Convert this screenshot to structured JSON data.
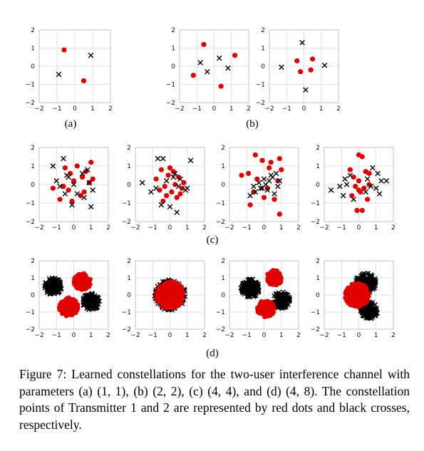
{
  "figure": {
    "colors": {
      "red": "#e00000",
      "black": "#000000",
      "grid": "#d9d9d9",
      "axis": "#bbbbbb"
    },
    "series_names": [
      "Transmitter 1",
      "Transmitter 2"
    ],
    "row_labels": [
      "(a)",
      "(b)",
      "(c)",
      "(d)"
    ]
  },
  "caption": {
    "text": "Figure 7: Learned constellations for the two-user interference channel with parameters (a) (1, 1), (b) (2, 2), (c) (4, 4), and (d) (4, 8). The constellation points of Transmitter 1 and 2 are represented by red dots and black crosses, respectively."
  },
  "chart_data": [
    {
      "type": "scatter",
      "panel": "a",
      "xlim": [
        -2,
        2
      ],
      "ylim": [
        -2,
        2
      ],
      "xticks": [
        -2,
        -1,
        0,
        1,
        2
      ],
      "yticks": [
        -2,
        -1,
        0,
        1,
        2
      ],
      "grid": true,
      "series": [
        {
          "marker": "dot",
          "color": "red",
          "x": [
            -0.6,
            0.5
          ],
          "y": [
            0.9,
            -0.8
          ]
        },
        {
          "marker": "cross",
          "color": "black",
          "x": [
            -0.9,
            0.9
          ],
          "y": [
            -0.45,
            0.6
          ]
        }
      ]
    },
    {
      "type": "scatter",
      "panel": "b1",
      "xlim": [
        -2,
        2
      ],
      "ylim": [
        -2,
        2
      ],
      "xticks": [
        -2,
        -1,
        0,
        1,
        2
      ],
      "yticks": [
        -2,
        -1,
        0,
        1,
        2
      ],
      "grid": true,
      "series": [
        {
          "marker": "dot",
          "color": "red",
          "x": [
            -0.6,
            1.2,
            -1.2,
            0.4
          ],
          "y": [
            1.2,
            0.6,
            -0.5,
            -1.1
          ]
        },
        {
          "marker": "cross",
          "color": "black",
          "x": [
            -0.8,
            0.3,
            -0.4,
            0.8
          ],
          "y": [
            0.2,
            0.45,
            -0.3,
            -0.1
          ]
        }
      ]
    },
    {
      "type": "scatter",
      "panel": "b2",
      "xlim": [
        -2,
        2
      ],
      "ylim": [
        -2,
        2
      ],
      "xticks": [
        -2,
        -1,
        0,
        1,
        2
      ],
      "yticks": [
        -2,
        -1,
        0,
        1,
        2
      ],
      "grid": true,
      "series": [
        {
          "marker": "dot",
          "color": "red",
          "x": [
            -0.4,
            0.5,
            -0.2,
            0.4
          ],
          "y": [
            0.3,
            0.4,
            -0.3,
            -0.2
          ]
        },
        {
          "marker": "cross",
          "color": "black",
          "x": [
            -0.1,
            1.2,
            -1.3,
            0.1
          ],
          "y": [
            1.3,
            0.05,
            -0.05,
            -1.3
          ]
        }
      ]
    },
    {
      "type": "scatter",
      "panel": "c1",
      "xlim": [
        -2,
        2
      ],
      "ylim": [
        -2,
        2
      ],
      "xticks": [
        -2,
        -1,
        0,
        1,
        2
      ],
      "yticks": [
        -2,
        -1,
        0,
        1,
        2
      ],
      "grid": true,
      "series": [
        {
          "marker": "dot",
          "color": "red",
          "x": [
            -0.5,
            0.2,
            1.0,
            -0.2,
            0.7,
            -1.2,
            1.1,
            -0.8,
            0.4,
            -0.3,
            0.0,
            0.9,
            -0.6,
            0.5,
            -0.1,
            0.6
          ],
          "y": [
            0.9,
            1.0,
            1.2,
            0.6,
            0.7,
            -0.2,
            0.3,
            -0.8,
            -0.6,
            -0.3,
            0.2,
            0.1,
            -0.1,
            0.4,
            -0.9,
            -0.4
          ]
        },
        {
          "marker": "cross",
          "color": "black",
          "x": [
            -1.2,
            -0.6,
            -0.4,
            0.8,
            -1.0,
            -0.8,
            1.0,
            0.2,
            -0.3,
            0.5,
            -0.1,
            0.9,
            1.1,
            -0.5,
            0.0,
            0.6
          ],
          "y": [
            1.0,
            1.4,
            0.5,
            0.8,
            0.2,
            -0.1,
            -1.2,
            -0.5,
            0.4,
            0.6,
            -1.1,
            0.1,
            -0.3,
            -0.5,
            0.0,
            -0.7
          ]
        }
      ]
    },
    {
      "type": "scatter",
      "panel": "c2",
      "xlim": [
        -2,
        2
      ],
      "ylim": [
        -2,
        2
      ],
      "xticks": [
        -2,
        -1,
        0,
        1,
        2
      ],
      "yticks": [
        -2,
        -1,
        0,
        1,
        2
      ],
      "grid": true,
      "series": [
        {
          "marker": "dot",
          "color": "red",
          "x": [
            -0.5,
            0.2,
            -0.8,
            0.5,
            -0.3,
            0.1,
            0.8,
            -0.6,
            0.4,
            -0.1,
            0.6,
            -0.4,
            0.0,
            0.3,
            -0.2,
            0.7
          ],
          "y": [
            0.8,
            0.7,
            0.3,
            0.4,
            -0.1,
            -0.4,
            0.1,
            -0.3,
            -0.7,
            0.5,
            -0.5,
            -0.9,
            0.9,
            0.0,
            -0.6,
            -0.2
          ]
        },
        {
          "marker": "cross",
          "color": "black",
          "x": [
            -0.7,
            -0.4,
            1.2,
            -1.6,
            0.9,
            -1.1,
            -0.2,
            0.3,
            0.6,
            1.0,
            -0.8,
            0.0,
            0.4,
            -0.5,
            0.2,
            0.5
          ],
          "y": [
            1.4,
            1.4,
            1.3,
            0.1,
            -0.3,
            -0.4,
            0.2,
            0.6,
            0.3,
            -0.2,
            -0.2,
            -1.2,
            -1.5,
            -1.1,
            0.4,
            -0.1
          ]
        }
      ]
    },
    {
      "type": "scatter",
      "panel": "c3",
      "xlim": [
        -2,
        2
      ],
      "ylim": [
        -2,
        2
      ],
      "xticks": [
        -2,
        -1,
        0,
        1,
        2
      ],
      "yticks": [
        -2,
        -1,
        0,
        1,
        2
      ],
      "grid": true,
      "series": [
        {
          "marker": "dot",
          "color": "red",
          "x": [
            -0.5,
            -0.1,
            0.4,
            0.9,
            1.0,
            -1.3,
            -0.9,
            -0.4,
            0.3,
            0.8,
            -0.8,
            0.0,
            0.6,
            -0.6,
            0.2,
            0.9
          ],
          "y": [
            1.6,
            1.3,
            1.2,
            1.4,
            0.8,
            0.5,
            0.6,
            0.3,
            0.9,
            0.2,
            -1.1,
            -0.7,
            -0.8,
            -0.4,
            -0.2,
            -1.6
          ]
        },
        {
          "marker": "cross",
          "color": "black",
          "x": [
            -0.8,
            -0.5,
            -0.2,
            0.1,
            0.3,
            0.5,
            0.7,
            0.9,
            -0.6,
            -0.3,
            0.0,
            0.2,
            0.4,
            0.6,
            -0.1,
            0.8
          ],
          "y": [
            -0.6,
            -0.4,
            -0.2,
            0.0,
            0.2,
            0.4,
            0.6,
            0.2,
            -0.1,
            0.1,
            0.3,
            -0.3,
            0.5,
            -0.5,
            -0.2,
            -0.1
          ]
        }
      ]
    },
    {
      "type": "scatter",
      "panel": "c4",
      "xlim": [
        -2,
        2
      ],
      "ylim": [
        -2,
        2
      ],
      "xticks": [
        -2,
        -1,
        0,
        1,
        2
      ],
      "yticks": [
        -2,
        -1,
        0,
        1,
        2
      ],
      "grid": true,
      "series": [
        {
          "marker": "dot",
          "color": "red",
          "x": [
            0.0,
            0.2,
            -0.5,
            0.4,
            -0.3,
            0.6,
            0.0,
            -0.2,
            0.3,
            -0.4,
            0.1,
            0.5,
            -0.1,
            0.2,
            0.0,
            0.6
          ],
          "y": [
            1.6,
            1.5,
            0.8,
            0.7,
            0.4,
            0.6,
            0.2,
            -0.1,
            -0.2,
            -0.6,
            -0.4,
            -0.8,
            -1.4,
            -1.4,
            -0.3,
            0.0
          ]
        },
        {
          "marker": "cross",
          "color": "black",
          "x": [
            -1.1,
            -0.8,
            -0.5,
            -1.6,
            -0.9,
            -0.3,
            0.8,
            1.1,
            1.3,
            1.6,
            0.7,
            1.0,
            0.4,
            -0.7,
            0.5,
            1.2
          ],
          "y": [
            -0.1,
            0.3,
            0.5,
            -0.3,
            -0.6,
            -0.8,
            0.9,
            0.6,
            0.2,
            0.2,
            -0.1,
            -0.2,
            -0.4,
            0.0,
            0.3,
            -0.5
          ]
        }
      ]
    },
    {
      "type": "scatter",
      "panel": "d1",
      "xlim": [
        -2,
        2
      ],
      "ylim": [
        -2,
        2
      ],
      "xticks": [
        -2,
        -1,
        0,
        1,
        2
      ],
      "yticks": [
        -2,
        -1,
        0,
        1,
        2
      ],
      "grid": true,
      "series": [
        {
          "marker": "dot",
          "color": "red",
          "count": 256,
          "clusters": [
            [
              0.5,
              0.8,
              0.5
            ],
            [
              -0.3,
              -0.7,
              0.55
            ]
          ]
        },
        {
          "marker": "cross",
          "color": "black",
          "count": 256,
          "clusters": [
            [
              -1.2,
              0.5,
              0.5
            ],
            [
              1.0,
              -0.4,
              0.5
            ]
          ]
        }
      ]
    },
    {
      "type": "scatter",
      "panel": "d2",
      "xlim": [
        -2,
        2
      ],
      "ylim": [
        -2,
        2
      ],
      "xticks": [
        -2,
        -1,
        0,
        1,
        2
      ],
      "yticks": [
        -2,
        -1,
        0,
        1,
        2
      ],
      "grid": true,
      "series": [
        {
          "marker": "cross",
          "color": "black",
          "count": 256,
          "clusters": [
            [
              0.0,
              0.0,
              0.9
            ]
          ]
        },
        {
          "marker": "dot",
          "color": "red",
          "count": 256,
          "clusters": [
            [
              0.0,
              0.0,
              0.8
            ]
          ]
        }
      ]
    },
    {
      "type": "scatter",
      "panel": "d3",
      "xlim": [
        -2,
        2
      ],
      "ylim": [
        -2,
        2
      ],
      "xticks": [
        -2,
        -1,
        0,
        1,
        2
      ],
      "yticks": [
        -2,
        -1,
        0,
        1,
        2
      ],
      "grid": true,
      "series": [
        {
          "marker": "cross",
          "color": "black",
          "count": 256,
          "clusters": [
            [
              -0.8,
              0.4,
              0.55
            ],
            [
              1.0,
              -0.3,
              0.5
            ]
          ]
        },
        {
          "marker": "dot",
          "color": "red",
          "count": 256,
          "clusters": [
            [
              0.6,
              1.0,
              0.45
            ],
            [
              0.1,
              -0.8,
              0.5
            ]
          ]
        }
      ]
    },
    {
      "type": "scatter",
      "panel": "d4",
      "xlim": [
        -2,
        2
      ],
      "ylim": [
        -2,
        2
      ],
      "xticks": [
        -2,
        -1,
        0,
        1,
        2
      ],
      "yticks": [
        -2,
        -1,
        0,
        1,
        2
      ],
      "grid": true,
      "series": [
        {
          "marker": "cross",
          "color": "black",
          "count": 256,
          "clusters": [
            [
              0.4,
              0.7,
              0.6
            ],
            [
              0.6,
              -0.9,
              0.5
            ]
          ]
        },
        {
          "marker": "dot",
          "color": "red",
          "count": 256,
          "clusters": [
            [
              -0.1,
              0.0,
              0.7
            ]
          ]
        }
      ]
    }
  ]
}
